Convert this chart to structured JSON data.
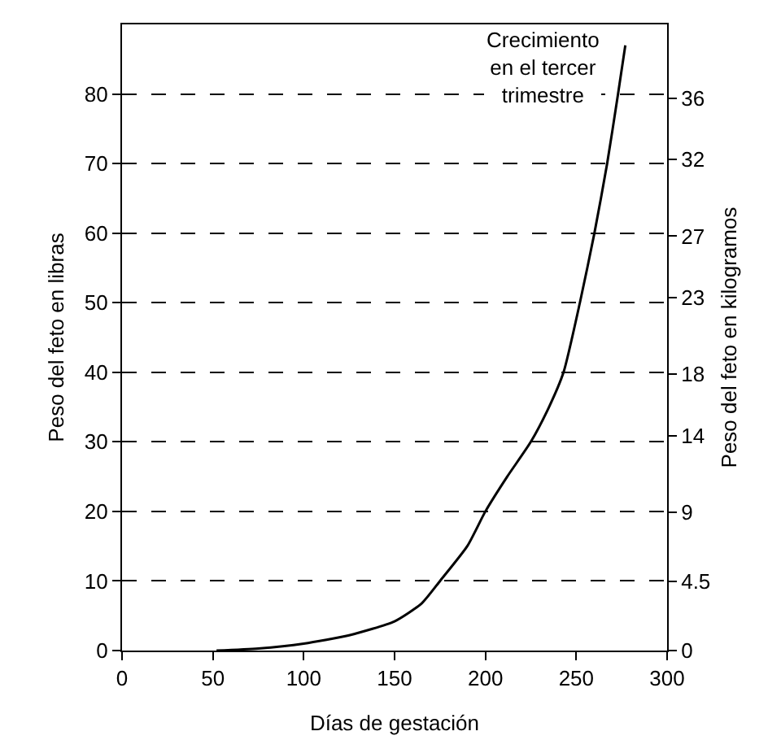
{
  "chart_data": {
    "type": "line",
    "xlabel": "Días de gestación",
    "ylabel": "Peso del feto en libras",
    "y2label": "Peso del feto en kilogramos",
    "annotations": [
      "Crecimiento\nen el tercer\ntrimestre"
    ],
    "series": [
      {
        "color": "#000000",
        "x": [
          52,
          75,
          100,
          125,
          150,
          165,
          175,
          190,
          200,
          212,
          225,
          235,
          243,
          252,
          260,
          267,
          273,
          277
        ],
        "values": [
          0,
          0.3,
          1,
          2.2,
          4.2,
          6.8,
          10,
          15,
          20,
          25,
          30,
          35,
          40,
          50,
          60,
          70,
          80,
          87
        ]
      }
    ],
    "xlim": [
      0,
      300
    ],
    "xticks": [
      0,
      50,
      100,
      150,
      200,
      250,
      300
    ],
    "ylim": [
      0,
      90
    ],
    "yticks": [
      0,
      10,
      20,
      30,
      40,
      50,
      60,
      70,
      80
    ],
    "y2lim": [
      0,
      40.8
    ],
    "y2ticks": [
      0,
      4.5,
      9,
      14,
      18,
      23,
      27,
      32,
      36
    ],
    "grid": "y",
    "line_style": "solid",
    "marker": "none"
  }
}
